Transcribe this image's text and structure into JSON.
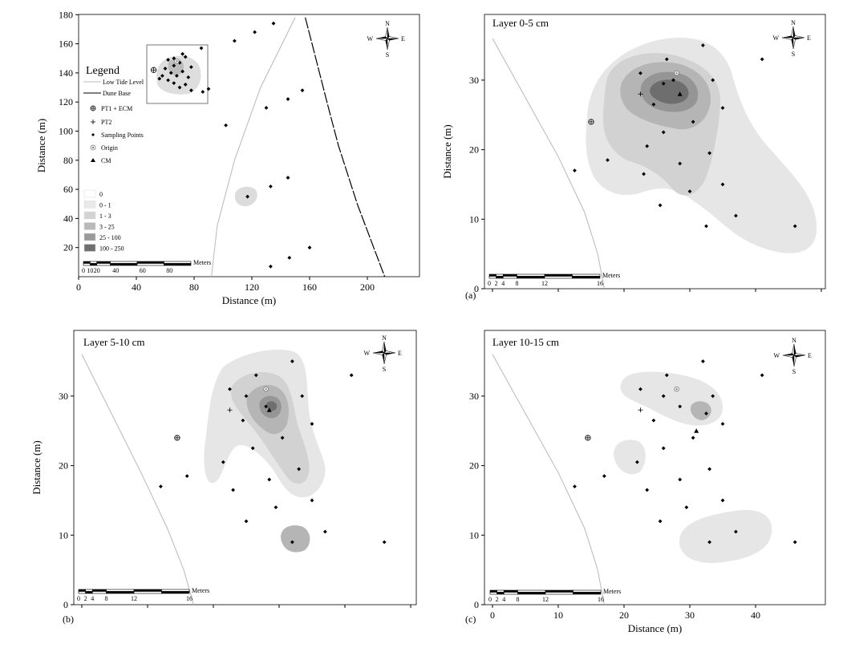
{
  "figure": {
    "panels": [
      {
        "id": "overview",
        "layer_title": "",
        "panel_label": "",
        "xlabel": "Distance (m)",
        "ylabel": "Distance (m)",
        "xlim": [
          0,
          220
        ],
        "ylim": [
          0,
          180
        ],
        "xticks": [
          "0",
          "40",
          "80",
          "120",
          "160",
          "200"
        ],
        "yticks": [
          "20",
          "40",
          "60",
          "80",
          "100",
          "120",
          "140",
          "160",
          "180"
        ],
        "scale_labels": [
          "0",
          "10",
          "20",
          "40",
          "60",
          "80"
        ],
        "scale_unit": "Meters"
      },
      {
        "id": "a",
        "layer_title": "Layer 0-5 cm",
        "panel_label": "(a)",
        "xlabel": "",
        "ylabel": "Distance (m)",
        "xlim": [
          0,
          50
        ],
        "ylim": [
          0,
          36
        ],
        "xticks": [],
        "yticks": [
          "0",
          "10",
          "20",
          "30"
        ],
        "scale_labels": [
          "0",
          "2",
          "4",
          "8",
          "12",
          "16"
        ],
        "scale_unit": "Meters"
      },
      {
        "id": "b",
        "layer_title": "Layer 5-10 cm",
        "panel_label": "(b)",
        "xlabel": "",
        "ylabel": "Distance (m)",
        "xlim": [
          0,
          50
        ],
        "ylim": [
          0,
          36
        ],
        "xticks": [],
        "yticks": [
          "0",
          "10",
          "20",
          "30"
        ],
        "scale_labels": [
          "0",
          "2",
          "4",
          "8",
          "12",
          "16"
        ],
        "scale_unit": "Meters"
      },
      {
        "id": "c",
        "layer_title": "Layer 10-15 cm",
        "panel_label": "(c)",
        "xlabel": "Distance (m)",
        "ylabel": "",
        "xlim": [
          0,
          50
        ],
        "ylim": [
          0,
          36
        ],
        "xticks": [
          "0",
          "10",
          "20",
          "30",
          "40"
        ],
        "yticks": [
          "0",
          "10",
          "20",
          "30"
        ],
        "scale_labels": [
          "0",
          "2",
          "4",
          "8",
          "12",
          "16"
        ],
        "scale_unit": "Meters"
      }
    ],
    "north_arrow": {
      "n": "N",
      "s": "S",
      "w": "W",
      "e": "E"
    },
    "legend": {
      "title": "Legend",
      "lines": [
        "Low Tide Level",
        "Dune Base"
      ],
      "symbols": [
        "PT1 + ECM",
        "PT2",
        "Sampling Points",
        "Origin",
        "CM"
      ],
      "classes": [
        "0",
        "0 - 1",
        "1 - 3",
        "3 - 25",
        "25 - 100",
        "100 - 250"
      ],
      "class_colors": [
        "#ffffff",
        "#e9e9e9",
        "#d3d3d3",
        "#b9b9b9",
        "#9a9a9a",
        "#6f6f6f"
      ]
    }
  },
  "chart_data": [
    {
      "type": "scatter",
      "title": "",
      "xlabel": "Distance (m)",
      "ylabel": "Distance (m)",
      "xlim": [
        0,
        220
      ],
      "ylim": [
        0,
        180
      ],
      "sampling_points": [
        [
          85,
          157
        ],
        [
          108,
          162
        ],
        [
          122,
          168
        ],
        [
          135,
          174
        ],
        [
          90,
          129
        ],
        [
          86,
          127
        ],
        [
          102,
          104
        ],
        [
          130,
          116
        ],
        [
          145,
          122
        ],
        [
          155,
          128
        ],
        [
          133,
          62
        ],
        [
          145,
          68
        ],
        [
          117,
          55
        ],
        [
          133,
          7
        ],
        [
          146,
          13
        ],
        [
          160,
          20
        ]
      ],
      "cluster_points": [
        [
          62,
          149
        ],
        [
          66,
          150
        ],
        [
          70,
          147
        ],
        [
          74,
          151
        ],
        [
          78,
          144
        ],
        [
          60,
          143
        ],
        [
          64,
          140
        ],
        [
          68,
          138
        ],
        [
          72,
          141
        ],
        [
          76,
          137
        ],
        [
          62,
          135
        ],
        [
          66,
          133
        ],
        [
          70,
          130
        ],
        [
          74,
          132
        ],
        [
          78,
          128
        ],
        [
          58,
          138
        ],
        [
          56,
          136
        ],
        [
          66,
          145
        ],
        [
          72,
          153
        ]
      ],
      "pt1_ecm": [
        [
          52,
          142
        ]
      ],
      "origin": [
        [
          68,
          148
        ]
      ],
      "low_tide_level": [
        [
          150,
          178
        ],
        [
          126,
          130
        ],
        [
          108,
          80
        ],
        [
          96,
          35
        ],
        [
          92,
          0
        ]
      ],
      "dune_base": [
        [
          157,
          178
        ],
        [
          163,
          155
        ],
        [
          172,
          120
        ],
        [
          180,
          90
        ],
        [
          193,
          50
        ],
        [
          212,
          0
        ]
      ],
      "inset_box": [
        [
          47,
          119
        ],
        [
          90,
          158
        ]
      ]
    },
    {
      "type": "contour",
      "title": "Layer 0-5 cm",
      "xlabel": "",
      "ylabel": "Distance (m)",
      "xlim": [
        0,
        50
      ],
      "ylim": [
        0,
        36
      ],
      "sampling_points": [
        [
          22.5,
          31
        ],
        [
          26.5,
          33
        ],
        [
          32,
          35
        ],
        [
          41,
          33
        ],
        [
          33.5,
          30
        ],
        [
          27.5,
          30
        ],
        [
          26,
          29.5
        ],
        [
          24.5,
          26.5
        ],
        [
          35,
          26
        ],
        [
          30.5,
          24
        ],
        [
          23.5,
          20.5
        ],
        [
          17.5,
          18.5
        ],
        [
          12.5,
          17
        ],
        [
          23,
          16.5
        ],
        [
          25.5,
          12
        ],
        [
          28.5,
          18
        ],
        [
          30,
          14
        ],
        [
          33,
          19.5
        ],
        [
          35,
          15
        ],
        [
          37,
          10.5
        ],
        [
          32.5,
          9
        ],
        [
          46,
          9
        ],
        [
          26,
          22.5
        ]
      ],
      "pt1_ecm": [
        [
          15,
          24
        ]
      ],
      "pt2": [
        [
          22.5,
          28
        ]
      ],
      "origin": [
        [
          28,
          31
        ]
      ],
      "cm": [
        [
          28.5,
          28
        ]
      ],
      "low_tide_level": [
        [
          0,
          36
        ],
        [
          10,
          19
        ],
        [
          14,
          11
        ],
        [
          16,
          5
        ],
        [
          17,
          0
        ]
      ]
    },
    {
      "type": "contour",
      "title": "Layer 5-10 cm",
      "xlabel": "",
      "ylabel": "Distance (m)",
      "xlim": [
        0,
        50
      ],
      "ylim": [
        0,
        36
      ],
      "sampling_points": [
        [
          22.5,
          31
        ],
        [
          26.5,
          33
        ],
        [
          32,
          35
        ],
        [
          41,
          33
        ],
        [
          33.5,
          30
        ],
        [
          25,
          30
        ],
        [
          28,
          28.5
        ],
        [
          24.5,
          26.5
        ],
        [
          35,
          26
        ],
        [
          30.5,
          24
        ],
        [
          21.5,
          20.5
        ],
        [
          16,
          18.5
        ],
        [
          12,
          17
        ],
        [
          23,
          16.5
        ],
        [
          25,
          12
        ],
        [
          28.5,
          18
        ],
        [
          29.5,
          14
        ],
        [
          33,
          19.5
        ],
        [
          35,
          15
        ],
        [
          37,
          10.5
        ],
        [
          32,
          9
        ],
        [
          46,
          9
        ],
        [
          26,
          22.5
        ]
      ],
      "pt1_ecm": [
        [
          14.5,
          24
        ]
      ],
      "pt2": [
        [
          22.5,
          28
        ]
      ],
      "origin": [
        [
          28,
          31
        ]
      ],
      "cm": [
        [
          28.5,
          28
        ]
      ],
      "low_tide_level": [
        [
          0,
          36
        ],
        [
          9,
          19
        ],
        [
          13,
          11
        ],
        [
          15.5,
          5
        ],
        [
          17,
          0
        ]
      ]
    },
    {
      "type": "contour",
      "title": "Layer 10-15 cm",
      "xlabel": "Distance (m)",
      "ylabel": "",
      "xlim": [
        0,
        50
      ],
      "ylim": [
        0,
        36
      ],
      "sampling_points": [
        [
          22.5,
          31
        ],
        [
          26.5,
          33
        ],
        [
          32,
          35
        ],
        [
          41,
          33
        ],
        [
          33.5,
          30
        ],
        [
          26,
          30
        ],
        [
          28.5,
          28.5
        ],
        [
          32.5,
          27.5
        ],
        [
          24.5,
          26.5
        ],
        [
          35,
          26
        ],
        [
          30.5,
          24
        ],
        [
          22,
          20.5
        ],
        [
          17,
          18.5
        ],
        [
          12.5,
          17
        ],
        [
          23.5,
          16.5
        ],
        [
          25.5,
          12
        ],
        [
          28.5,
          18
        ],
        [
          29.5,
          14
        ],
        [
          33,
          19.5
        ],
        [
          35,
          15
        ],
        [
          37,
          10.5
        ],
        [
          33,
          9
        ],
        [
          46,
          9
        ],
        [
          26,
          22.5
        ]
      ],
      "pt1_ecm": [
        [
          14.5,
          24
        ]
      ],
      "pt2": [
        [
          22.5,
          28
        ]
      ],
      "origin": [
        [
          28,
          31
        ]
      ],
      "cm": [
        [
          31,
          25
        ]
      ],
      "low_tide_level": [
        [
          0,
          36
        ],
        [
          10,
          19
        ],
        [
          14,
          11
        ],
        [
          16,
          5
        ],
        [
          17,
          0
        ]
      ]
    }
  ]
}
